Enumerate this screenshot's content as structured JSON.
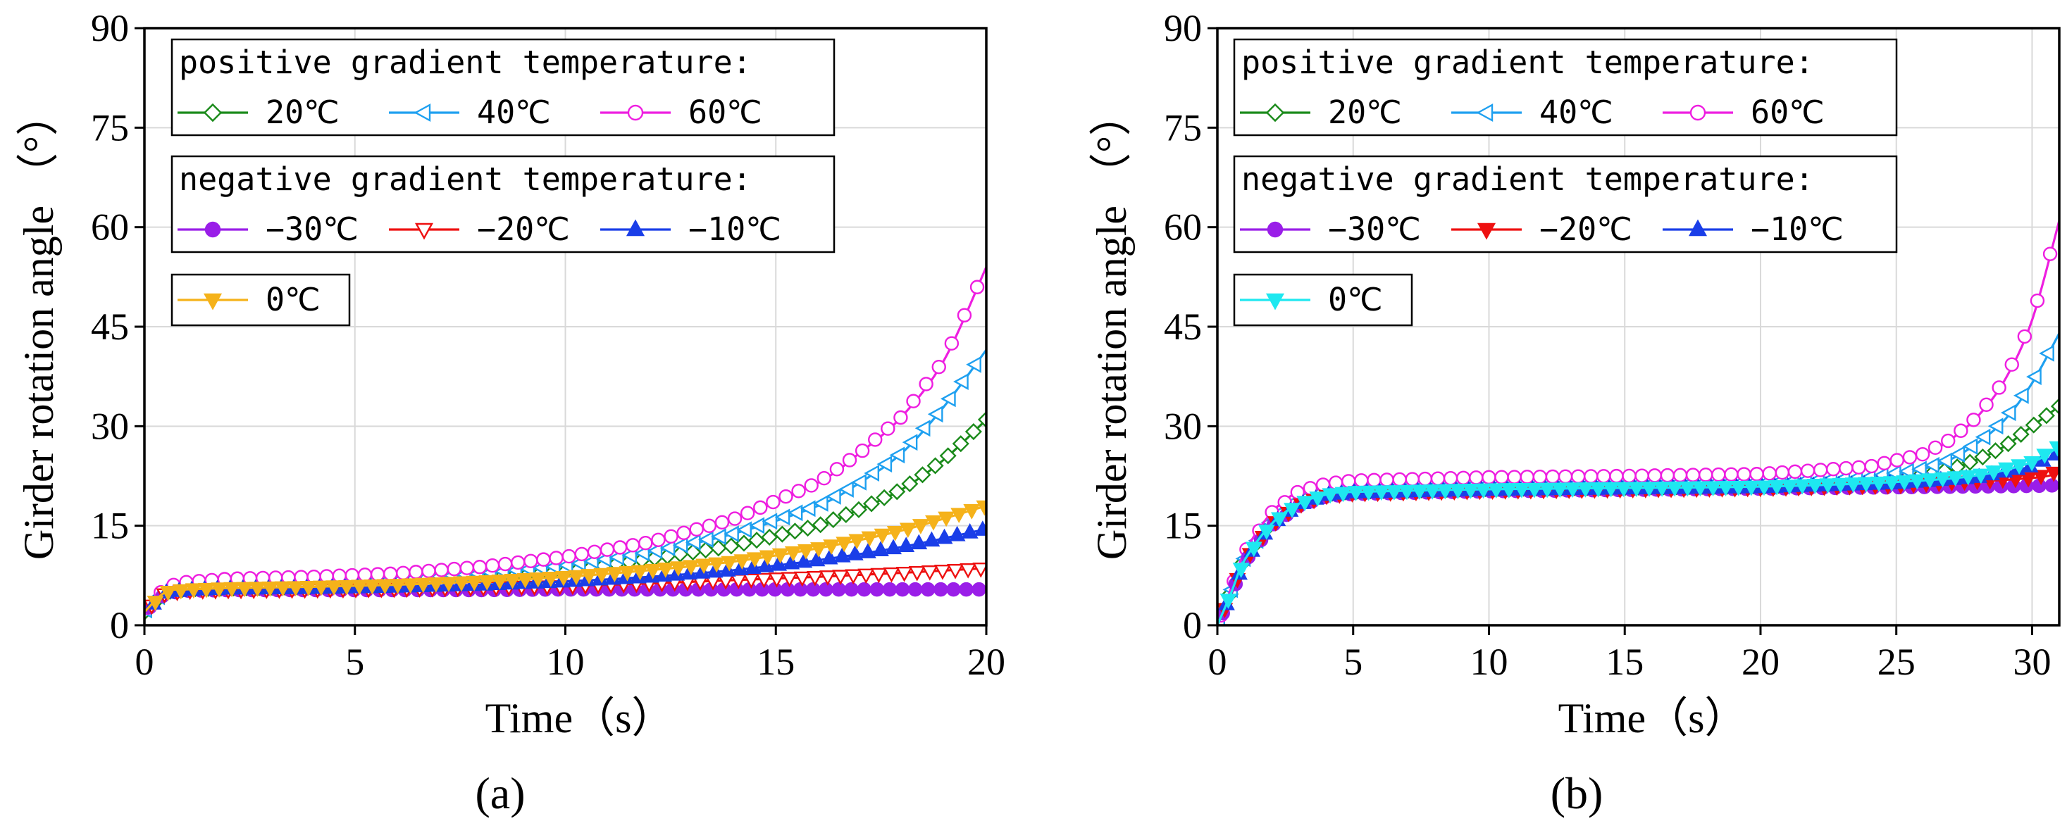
{
  "chart_data": [
    {
      "type": "line",
      "panel_label": "(a)",
      "xlabel": "Time（s）",
      "ylabel": "Girder rotation angle （°）",
      "xlim": [
        0,
        20
      ],
      "ylim": [
        0,
        90
      ],
      "xticks": [
        "0",
        "5",
        "10",
        "15",
        "20"
      ],
      "yticks": [
        "0",
        "15",
        "30",
        "45",
        "60",
        "75",
        "90"
      ],
      "grid": true,
      "legend_groups": [
        {
          "title": "positive gradient temperature:",
          "entries": [
            "20℃",
            "40℃",
            "60℃"
          ]
        },
        {
          "title": "negative gradient temperature:",
          "entries": [
            "−30℃",
            "−20℃",
            "−10℃"
          ]
        },
        {
          "title": "",
          "entries": [
            "0℃"
          ]
        }
      ],
      "series": [
        {
          "name": "20℃",
          "color": "#1a8a1a",
          "marker": "diamond-open",
          "x": [
            0,
            0.5,
            1,
            2,
            4,
            6,
            8,
            10,
            12,
            14,
            16,
            17,
            18,
            19,
            20
          ],
          "y": [
            2,
            5,
            5.5,
            5.6,
            5.8,
            6.2,
            7,
            8.1,
            10,
            12,
            15,
            17.5,
            20.5,
            25,
            31
          ]
        },
        {
          "name": "40℃",
          "color": "#1ea0f0",
          "marker": "triangle-left-open",
          "x": [
            0,
            0.5,
            1,
            2,
            4,
            6,
            8,
            10,
            12,
            14,
            16,
            17,
            18,
            19,
            20
          ],
          "y": [
            2,
            5.3,
            5.8,
            6.1,
            6.4,
            6.9,
            7.8,
            9,
            11,
            13.8,
            18,
            21.5,
            26,
            33,
            41.5
          ]
        },
        {
          "name": "60℃",
          "color": "#ee1ee0",
          "marker": "circle-open",
          "x": [
            0,
            0.5,
            1,
            2,
            4,
            6,
            8,
            10,
            12,
            14,
            16,
            17,
            18,
            19,
            20
          ],
          "y": [
            2,
            5.8,
            6.5,
            7,
            7.3,
            7.8,
            8.8,
            10.3,
            12.5,
            16,
            21.5,
            26,
            31.5,
            40,
            54
          ]
        },
        {
          "name": "−30℃",
          "color": "#9a1ee8",
          "marker": "circle-filled",
          "x": [
            0,
            0.5,
            1,
            2,
            4,
            6,
            8,
            10,
            12,
            14,
            16,
            18,
            20
          ],
          "y": [
            2,
            4.8,
            5.2,
            5.3,
            5.3,
            5.3,
            5.3,
            5.4,
            5.4,
            5.4,
            5.4,
            5.4,
            5.4
          ]
        },
        {
          "name": "−20℃",
          "color": "#ee1010",
          "marker": "triangle-down-open",
          "x": [
            0,
            0.5,
            1,
            2,
            4,
            6,
            8,
            10,
            12,
            14,
            16,
            18,
            20
          ],
          "y": [
            2,
            4.8,
            5.2,
            5.3,
            5.4,
            5.5,
            5.7,
            5.9,
            6.3,
            6.8,
            7.3,
            7.9,
            8.6
          ]
        },
        {
          "name": "−10℃",
          "color": "#1a3ee8",
          "marker": "triangle-up-filled",
          "x": [
            0,
            0.5,
            1,
            2,
            4,
            6,
            8,
            10,
            12,
            14,
            16,
            18,
            20
          ],
          "y": [
            2,
            4.9,
            5.3,
            5.5,
            5.6,
            5.8,
            6.1,
            6.6,
            7.3,
            8.3,
            9.8,
            11.8,
            14.5
          ]
        },
        {
          "name": "0℃",
          "color": "#f5b21a",
          "marker": "triangle-down-filled",
          "x": [
            0,
            0.5,
            1,
            2,
            4,
            6,
            8,
            10,
            12,
            14,
            16,
            18,
            20
          ],
          "y": [
            2,
            5,
            5.4,
            5.6,
            5.8,
            6.1,
            6.6,
            7.3,
            8.3,
            9.6,
            11.6,
            14.3,
            18
          ]
        }
      ]
    },
    {
      "type": "line",
      "panel_label": "(b)",
      "xlabel": "Time（s）",
      "ylabel": "Girder rotation angle （°）",
      "xlim": [
        0,
        31
      ],
      "ylim": [
        0,
        90
      ],
      "xticks": [
        "0",
        "5",
        "10",
        "15",
        "20",
        "25",
        "30"
      ],
      "yticks": [
        "0",
        "15",
        "30",
        "45",
        "60",
        "75",
        "90"
      ],
      "grid": true,
      "legend_groups": [
        {
          "title": "positive gradient temperature:",
          "entries": [
            "20℃",
            "40℃",
            "60℃"
          ]
        },
        {
          "title": "negative gradient temperature:",
          "entries": [
            "−30℃",
            "−20℃",
            "−10℃"
          ]
        },
        {
          "title": "",
          "entries": [
            "0℃"
          ]
        }
      ],
      "series": [
        {
          "name": "20℃",
          "color": "#1a8a1a",
          "marker": "diamond-open",
          "x": [
            0,
            0.5,
            1,
            2,
            3,
            4,
            5,
            10,
            15,
            20,
            24,
            26,
            27,
            28,
            29,
            30,
            31
          ],
          "y": [
            0,
            5,
            10,
            15.5,
            18.5,
            19.8,
            20.2,
            20.6,
            20.8,
            21,
            21.5,
            22.5,
            23.5,
            25,
            27,
            30,
            33
          ]
        },
        {
          "name": "40℃",
          "color": "#1ea0f0",
          "marker": "triangle-left-open",
          "x": [
            0,
            0.5,
            1,
            2,
            3,
            4,
            5,
            10,
            15,
            20,
            24,
            26,
            27,
            28,
            29,
            30,
            31
          ],
          "y": [
            0,
            5,
            10,
            15.8,
            19,
            20.3,
            20.8,
            21.2,
            21.4,
            21.6,
            22.3,
            23.6,
            25,
            27.5,
            31,
            36.5,
            44
          ]
        },
        {
          "name": "60℃",
          "color": "#ee1ee0",
          "marker": "circle-open",
          "x": [
            0,
            0.5,
            1,
            2,
            3,
            4,
            5,
            10,
            15,
            20,
            24,
            26,
            27,
            28,
            29,
            30,
            31
          ],
          "y": [
            0,
            5.5,
            11,
            17,
            20.2,
            21.3,
            21.8,
            22.3,
            22.5,
            22.8,
            23.9,
            25.8,
            28,
            31.5,
            37,
            46,
            61
          ]
        },
        {
          "name": "−30℃",
          "color": "#9a1ee8",
          "marker": "circle-filled",
          "x": [
            0,
            0.5,
            1,
            2,
            3,
            4,
            5,
            10,
            15,
            20,
            25,
            30,
            31
          ],
          "y": [
            0,
            4.5,
            9.5,
            15,
            18,
            19.4,
            19.8,
            20.2,
            20.4,
            20.6,
            20.8,
            21,
            21.1
          ]
        },
        {
          "name": "−20℃",
          "color": "#ee1010",
          "marker": "triangle-down-filled",
          "x": [
            0,
            0.5,
            1,
            2,
            3,
            4,
            5,
            10,
            15,
            20,
            25,
            30,
            31
          ],
          "y": [
            0,
            4.6,
            9.6,
            15.1,
            18.1,
            19.5,
            19.9,
            20.3,
            20.5,
            20.7,
            21.1,
            22.2,
            23.2
          ]
        },
        {
          "name": "−10℃",
          "color": "#1a3ee8",
          "marker": "triangle-up-filled",
          "x": [
            0,
            0.5,
            1,
            2,
            3,
            4,
            5,
            10,
            15,
            20,
            25,
            28,
            30,
            31
          ],
          "y": [
            0,
            4.7,
            9.7,
            15.2,
            18.2,
            19.6,
            20,
            20.4,
            20.6,
            20.8,
            21.4,
            22.3,
            24,
            26
          ]
        },
        {
          "name": "0℃",
          "color": "#1ee8f0",
          "marker": "triangle-down-filled",
          "x": [
            0,
            0.5,
            1,
            2,
            3,
            4,
            5,
            10,
            15,
            20,
            25,
            28,
            30,
            31
          ],
          "y": [
            0,
            4.8,
            9.8,
            15.3,
            18.3,
            19.7,
            20.1,
            20.5,
            20.7,
            20.9,
            21.6,
            22.6,
            24.6,
            27
          ]
        }
      ]
    }
  ]
}
